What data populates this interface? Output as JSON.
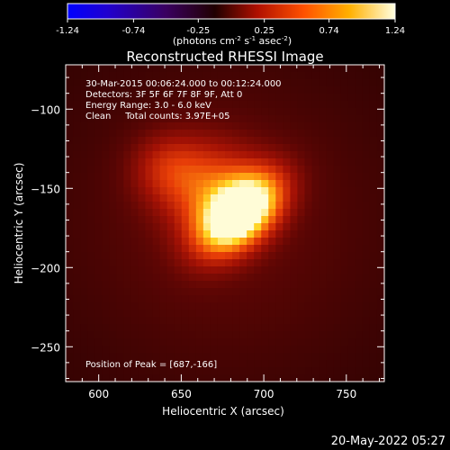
{
  "colorbar": {
    "ticks": [
      "-1.24",
      "-0.74",
      "-0.25",
      "0.25",
      "0.74",
      "1.24"
    ],
    "label_main": "(photons cm",
    "label_exp1": "-2",
    "label_mid1": " s",
    "label_exp2": "-1",
    "label_mid2": " asec",
    "label_exp3": "-2",
    "label_end": ")"
  },
  "chart_data": {
    "type": "heatmap",
    "title": "Reconstructed RHESSI Image",
    "xlabel": "Heliocentric X (arcsec)",
    "ylabel": "Heliocentric Y (arcsec)",
    "xlim": [
      580,
      773
    ],
    "ylim": [
      -272,
      -72
    ],
    "xticks": [
      600,
      650,
      700,
      750
    ],
    "yticks": [
      -100,
      -150,
      -200,
      -250
    ],
    "colorbar_range": [
      -1.24,
      1.24
    ],
    "sources": [
      {
        "x": 686,
        "y": -166,
        "amp": 1.0
      },
      {
        "x": 668,
        "y": -150,
        "amp": 0.42
      },
      {
        "x": 640,
        "y": -136,
        "amp": 0.25
      }
    ],
    "peak": [
      687,
      -166
    ],
    "annotations": [
      "30-Mar-2015 00:06:24.000 to 00:12:24.000",
      "Detectors: 3F 5F 6F 7F 8F 9F, Att 0",
      "Energy Range: 3.0 - 6.0 keV",
      "Clean     Total counts: 3.97E+05",
      "Position of Peak = [687,-166]"
    ]
  },
  "footer": {
    "timestamp": "20-May-2022 05:27"
  }
}
